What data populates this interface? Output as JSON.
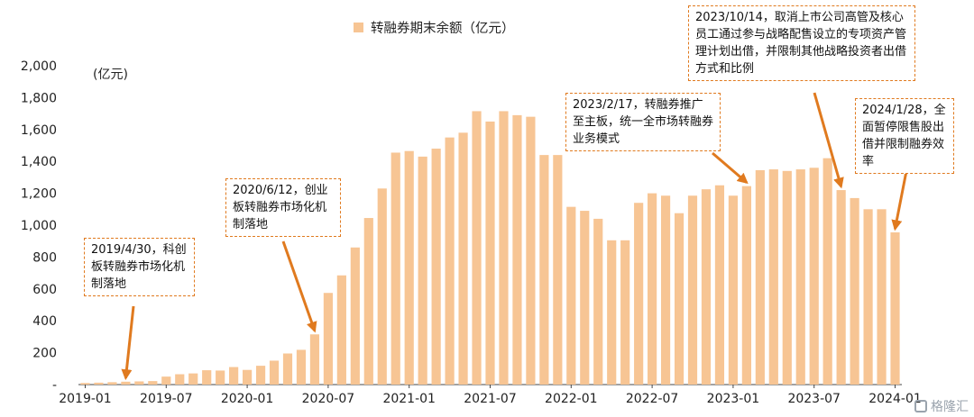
{
  "chart_data": {
    "type": "bar",
    "legend": "转融券期末余额（亿元）",
    "unit_label": "(亿元)",
    "color": "#f7c594",
    "ylim": [
      0,
      2000
    ],
    "y_ticks": [
      "-",
      "200",
      "400",
      "600",
      "800",
      "1,000",
      "1,200",
      "1,400",
      "1,600",
      "1,800",
      "2,000"
    ],
    "x_ticks": [
      "2019-01",
      "2019-07",
      "2020-01",
      "2020-07",
      "2021-01",
      "2021-07",
      "2022-01",
      "2022-07",
      "2023-01",
      "2023-07",
      "2024-01"
    ],
    "categories": [
      "2019-01",
      "2019-02",
      "2019-03",
      "2019-04",
      "2019-05",
      "2019-06",
      "2019-07",
      "2019-08",
      "2019-09",
      "2019-10",
      "2019-11",
      "2019-12",
      "2020-01",
      "2020-02",
      "2020-03",
      "2020-04",
      "2020-05",
      "2020-06",
      "2020-07",
      "2020-08",
      "2020-09",
      "2020-10",
      "2020-11",
      "2020-12",
      "2021-01",
      "2021-02",
      "2021-03",
      "2021-04",
      "2021-05",
      "2021-06",
      "2021-07",
      "2021-08",
      "2021-09",
      "2021-10",
      "2021-11",
      "2021-12",
      "2022-01",
      "2022-02",
      "2022-03",
      "2022-04",
      "2022-05",
      "2022-06",
      "2022-07",
      "2022-08",
      "2022-09",
      "2022-10",
      "2022-11",
      "2022-12",
      "2023-01",
      "2023-02",
      "2023-03",
      "2023-04",
      "2023-05",
      "2023-06",
      "2023-07",
      "2023-08",
      "2023-09",
      "2023-10",
      "2023-11",
      "2023-12",
      "2024-01"
    ],
    "values": [
      10,
      12,
      15,
      18,
      20,
      22,
      50,
      65,
      70,
      90,
      88,
      110,
      92,
      118,
      150,
      195,
      218,
      315,
      575,
      685,
      860,
      1045,
      1230,
      1455,
      1465,
      1430,
      1480,
      1550,
      1580,
      1715,
      1650,
      1715,
      1690,
      1680,
      1440,
      1440,
      1115,
      1090,
      1040,
      905,
      905,
      1140,
      1200,
      1185,
      1075,
      1185,
      1225,
      1250,
      1185,
      1245,
      1345,
      1350,
      1340,
      1350,
      1360,
      1420,
      1220,
      1170,
      1100,
      1100,
      955
    ],
    "annotations": [
      {
        "text": "2019/4/30，科创板转融券市场化机制落地",
        "target": "2019-04"
      },
      {
        "text": "2020/6/12，创业板转融券市场化机制落地",
        "target": "2020-06"
      },
      {
        "text": "2023/2/17，转融券推广至主板，统一全市场转融券业务模式",
        "target": "2023-02"
      },
      {
        "text": "2023/10/14，取消上市公司高管及核心员工通过参与战略配售设立的专项资产管理计划出借，并限制其他战略投资者出借方式和比例",
        "target": "2023-09"
      },
      {
        "text": "2024/1/28，全面暂停限售股出借并限制融券效率",
        "target": "2024-01"
      }
    ]
  },
  "watermark": "格隆汇"
}
